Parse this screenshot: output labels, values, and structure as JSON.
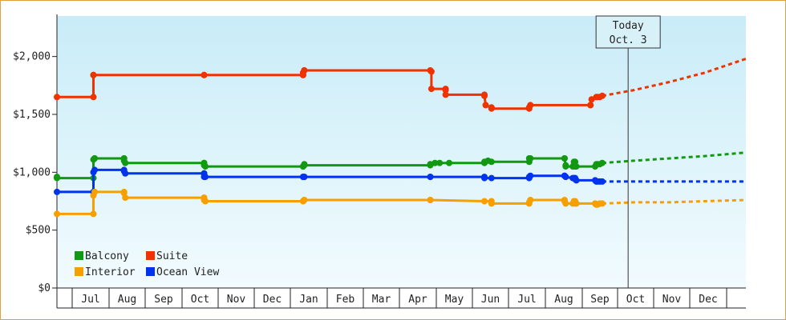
{
  "chart_data": {
    "type": "line",
    "y_ticks": [
      {
        "value": 0,
        "label": "$0"
      },
      {
        "value": 500,
        "label": "$500"
      },
      {
        "value": 1000,
        "label": "$1,000"
      },
      {
        "value": 1500,
        "label": "$1,500"
      },
      {
        "value": 2000,
        "label": "$2,000"
      }
    ],
    "ylim": [
      0,
      2350
    ],
    "x_month_labels": [
      "Jul",
      "Aug",
      "Sep",
      "Oct",
      "Nov",
      "Dec",
      "Jan",
      "Feb",
      "Mar",
      "Apr",
      "May",
      "Jun",
      "Jul",
      "Aug",
      "Sep",
      "Oct",
      "Nov",
      "Dec"
    ],
    "x_unit": "days relative to first month boundary",
    "today": {
      "line1": "Today",
      "line2": "Oct. 3",
      "x": 455
    },
    "legend": {
      "placement": "bottom-left",
      "entries": [
        {
          "name": "Balcony",
          "color": "#119911"
        },
        {
          "name": "Suite",
          "color": "#ee3300"
        },
        {
          "name": "Interior",
          "color": "#f5a000"
        },
        {
          "name": "Ocean View",
          "color": "#0033ee"
        }
      ]
    },
    "series": [
      {
        "name": "Suite",
        "color": "#ee3300",
        "points": [
          [
            -30,
            1650
          ],
          [
            1,
            1650
          ],
          [
            1,
            1840
          ],
          [
            1,
            1840
          ],
          [
            95,
            1840
          ],
          [
            95,
            1840
          ],
          [
            179,
            1840
          ],
          [
            179,
            1840
          ],
          [
            179,
            1860
          ],
          [
            180,
            1880
          ],
          [
            180,
            1880
          ],
          [
            287,
            1880
          ],
          [
            288,
            1870
          ],
          [
            288,
            1720
          ],
          [
            300,
            1720
          ],
          [
            300,
            1710
          ],
          [
            300,
            1670
          ],
          [
            333,
            1670
          ],
          [
            333,
            1660
          ],
          [
            334,
            1580
          ],
          [
            339,
            1560
          ],
          [
            339,
            1550
          ],
          [
            371,
            1550
          ],
          [
            371,
            1560
          ],
          [
            372,
            1580
          ],
          [
            423,
            1580
          ],
          [
            423,
            1580
          ],
          [
            424,
            1630
          ],
          [
            428,
            1650
          ],
          [
            429,
            1650
          ],
          [
            431,
            1650
          ],
          [
            433,
            1660
          ]
        ],
        "projection": [
          [
            433,
            1660
          ],
          [
            460,
            1710
          ],
          [
            490,
            1780
          ],
          [
            520,
            1860
          ],
          [
            555,
            1980
          ]
        ]
      },
      {
        "name": "Balcony",
        "color": "#119911",
        "points": [
          [
            -30,
            960
          ],
          [
            -30,
            950
          ],
          [
            1,
            950
          ],
          [
            1,
            1110
          ],
          [
            2,
            1120
          ],
          [
            2,
            1120
          ],
          [
            27,
            1120
          ],
          [
            27,
            1120
          ],
          [
            27,
            1100
          ],
          [
            28,
            1080
          ],
          [
            95,
            1080
          ],
          [
            95,
            1080
          ],
          [
            95,
            1060
          ],
          [
            96,
            1050
          ],
          [
            179,
            1050
          ],
          [
            179,
            1050
          ],
          [
            180,
            1070
          ],
          [
            180,
            1060
          ],
          [
            287,
            1060
          ],
          [
            287,
            1070
          ],
          [
            291,
            1080
          ],
          [
            295,
            1080
          ],
          [
            303,
            1080
          ],
          [
            333,
            1080
          ],
          [
            333,
            1090
          ],
          [
            336,
            1100
          ],
          [
            339,
            1090
          ],
          [
            371,
            1090
          ],
          [
            371,
            1120
          ],
          [
            372,
            1120
          ],
          [
            401,
            1120
          ],
          [
            401,
            1120
          ],
          [
            402,
            1060
          ],
          [
            402,
            1050
          ],
          [
            408,
            1050
          ],
          [
            409,
            1090
          ],
          [
            410,
            1090
          ],
          [
            410,
            1050
          ],
          [
            411,
            1050
          ],
          [
            427,
            1050
          ],
          [
            428,
            1070
          ],
          [
            429,
            1070
          ],
          [
            431,
            1070
          ],
          [
            433,
            1080
          ]
        ],
        "projection": [
          [
            433,
            1080
          ],
          [
            460,
            1100
          ],
          [
            490,
            1120
          ],
          [
            520,
            1140
          ],
          [
            555,
            1170
          ]
        ]
      },
      {
        "name": "Ocean View",
        "color": "#0033ee",
        "points": [
          [
            -30,
            830
          ],
          [
            1,
            830
          ],
          [
            1,
            1000
          ],
          [
            2,
            1020
          ],
          [
            27,
            1020
          ],
          [
            27,
            1010
          ],
          [
            28,
            990
          ],
          [
            95,
            990
          ],
          [
            95,
            990
          ],
          [
            95,
            960
          ],
          [
            96,
            960
          ],
          [
            179,
            960
          ],
          [
            179,
            960
          ],
          [
            180,
            960
          ],
          [
            180,
            960
          ],
          [
            287,
            960
          ],
          [
            287,
            960
          ],
          [
            333,
            960
          ],
          [
            333,
            950
          ],
          [
            339,
            950
          ],
          [
            371,
            950
          ],
          [
            371,
            960
          ],
          [
            372,
            970
          ],
          [
            401,
            970
          ],
          [
            401,
            970
          ],
          [
            402,
            960
          ],
          [
            402,
            960
          ],
          [
            408,
            950
          ],
          [
            409,
            950
          ],
          [
            410,
            950
          ],
          [
            410,
            940
          ],
          [
            411,
            930
          ],
          [
            427,
            930
          ],
          [
            428,
            920
          ],
          [
            429,
            920
          ],
          [
            431,
            920
          ],
          [
            433,
            920
          ]
        ],
        "projection": [
          [
            433,
            920
          ],
          [
            460,
            920
          ],
          [
            490,
            920
          ],
          [
            520,
            920
          ],
          [
            555,
            920
          ]
        ]
      },
      {
        "name": "Interior",
        "color": "#f5a000",
        "points": [
          [
            -30,
            640
          ],
          [
            1,
            640
          ],
          [
            1,
            800
          ],
          [
            2,
            830
          ],
          [
            27,
            830
          ],
          [
            27,
            820
          ],
          [
            28,
            780
          ],
          [
            95,
            780
          ],
          [
            95,
            780
          ],
          [
            95,
            760
          ],
          [
            96,
            750
          ],
          [
            179,
            750
          ],
          [
            179,
            750
          ],
          [
            180,
            760
          ],
          [
            180,
            760
          ],
          [
            287,
            760
          ],
          [
            287,
            760
          ],
          [
            333,
            750
          ],
          [
            339,
            750
          ],
          [
            339,
            730
          ],
          [
            371,
            730
          ],
          [
            371,
            740
          ],
          [
            372,
            760
          ],
          [
            401,
            760
          ],
          [
            401,
            750
          ],
          [
            402,
            730
          ],
          [
            408,
            730
          ],
          [
            409,
            750
          ],
          [
            410,
            750
          ],
          [
            410,
            730
          ],
          [
            411,
            730
          ],
          [
            427,
            730
          ],
          [
            428,
            720
          ],
          [
            429,
            720
          ],
          [
            431,
            730
          ],
          [
            433,
            730
          ]
        ],
        "projection": [
          [
            433,
            730
          ],
          [
            460,
            740
          ],
          [
            490,
            740
          ],
          [
            520,
            750
          ],
          [
            555,
            760
          ]
        ]
      }
    ]
  }
}
